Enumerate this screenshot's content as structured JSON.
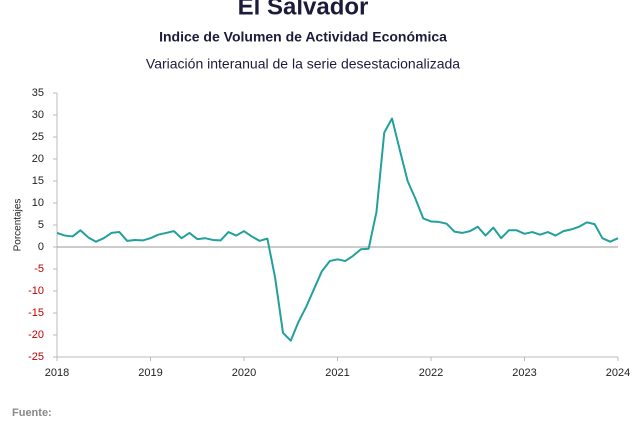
{
  "chart_data": {
    "type": "line",
    "title": "El Salvador",
    "subtitle": "Indice de Volumen de  Actividad Económica",
    "subtitle2": "Variación interanual de la serie desestacionalizada",
    "ylabel": "Porcentajes",
    "source": "Fuente:",
    "x": [
      2018,
      2018.083,
      2018.167,
      2018.25,
      2018.333,
      2018.417,
      2018.5,
      2018.583,
      2018.667,
      2018.75,
      2018.833,
      2018.917,
      2019,
      2019.083,
      2019.167,
      2019.25,
      2019.333,
      2019.417,
      2019.5,
      2019.583,
      2019.667,
      2019.75,
      2019.833,
      2019.917,
      2020,
      2020.083,
      2020.167,
      2020.25,
      2020.333,
      2020.417,
      2020.5,
      2020.583,
      2020.667,
      2020.75,
      2020.833,
      2020.917,
      2021,
      2021.083,
      2021.167,
      2021.25,
      2021.333,
      2021.417,
      2021.5,
      2021.583,
      2021.667,
      2021.75,
      2021.833,
      2021.917,
      2022,
      2022.083,
      2022.167,
      2022.25,
      2022.333,
      2022.417,
      2022.5,
      2022.583,
      2022.667,
      2022.75,
      2022.833,
      2022.917,
      2023,
      2023.083,
      2023.167,
      2023.25,
      2023.333,
      2023.417,
      2023.5,
      2023.583,
      2023.667,
      2023.75,
      2023.833,
      2023.917,
      2024
    ],
    "series": [
      {
        "name": "Variación interanual",
        "color": "#23a09c",
        "values": [
          3.2,
          2.6,
          2.4,
          3.8,
          2.2,
          1.2,
          2.0,
          3.2,
          3.4,
          1.4,
          1.6,
          1.5,
          2.0,
          2.8,
          3.2,
          3.6,
          2.0,
          3.2,
          1.8,
          2.0,
          1.6,
          1.5,
          3.4,
          2.6,
          3.6,
          2.4,
          1.4,
          1.9,
          -7,
          -19.5,
          -21.3,
          -17,
          -13.5,
          -9.5,
          -5.5,
          -3.2,
          -2.8,
          -3.2,
          -2.0,
          -0.5,
          -0.4,
          8,
          26,
          29.2,
          22,
          15,
          11,
          6.5,
          5.8,
          5.7,
          5.3,
          3.5,
          3.2,
          3.6,
          4.6,
          2.6,
          4.4,
          2.0,
          3.8,
          3.8,
          3.0,
          3.4,
          2.8,
          3.4,
          2.6,
          3.6,
          4.0,
          4.6,
          5.6,
          5.2,
          2.0,
          1.2,
          2.0
        ]
      }
    ],
    "xlim": [
      2018,
      2024
    ],
    "xticks": [
      2018,
      2019,
      2020,
      2021,
      2022,
      2023,
      2024
    ],
    "ylim": [
      -25,
      35
    ],
    "yticks": [
      -25,
      -20,
      -15,
      -10,
      -5,
      0,
      5,
      10,
      15,
      20,
      25,
      30,
      35
    ],
    "negative_tick_color": "#c00000"
  }
}
